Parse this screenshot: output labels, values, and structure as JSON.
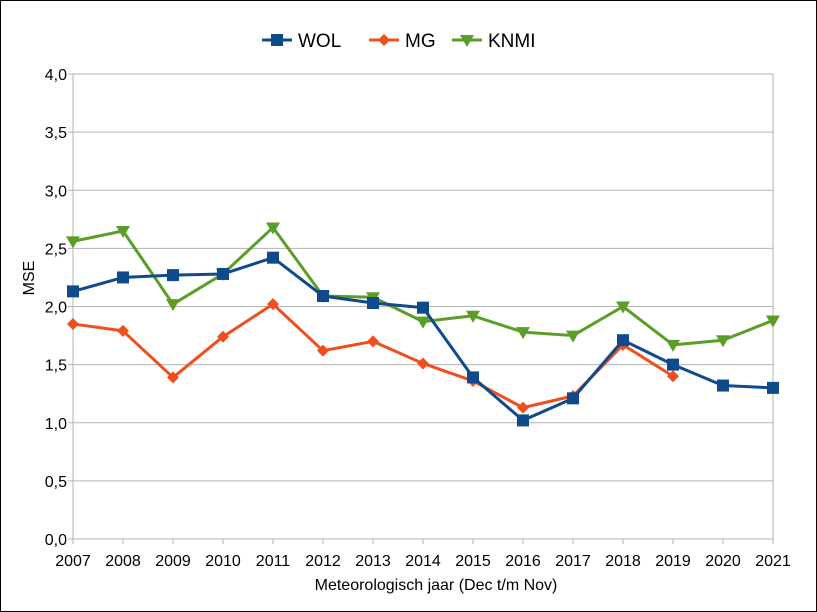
{
  "chart_data": {
    "type": "line",
    "title": "",
    "xlabel": "Meteorologisch jaar (Dec t/m Nov)",
    "ylabel": "MSE",
    "ylim": [
      0,
      4
    ],
    "y_ticks": [
      "0,0",
      "0,5",
      "1,0",
      "1,5",
      "2,0",
      "2,5",
      "3,0",
      "3,5",
      "4,0"
    ],
    "grid": "horizontal",
    "legend_position": "top-center",
    "categories": [
      "2007",
      "2008",
      "2009",
      "2010",
      "2011",
      "2012",
      "2013",
      "2014",
      "2015",
      "2016",
      "2017",
      "2018",
      "2019",
      "2020",
      "2021"
    ],
    "series": [
      {
        "name": "WOL",
        "color": "#0e4a8c",
        "marker": "square",
        "values": [
          2.13,
          2.25,
          2.27,
          2.28,
          2.42,
          2.09,
          2.03,
          1.99,
          1.39,
          1.02,
          1.21,
          1.71,
          1.5,
          1.32,
          1.3
        ]
      },
      {
        "name": "MG",
        "color": "#f04e1c",
        "marker": "diamond",
        "values": [
          1.85,
          1.79,
          1.39,
          1.74,
          2.02,
          1.62,
          1.7,
          1.51,
          1.36,
          1.13,
          1.23,
          1.67,
          1.4,
          null,
          null
        ]
      },
      {
        "name": "KNMI",
        "color": "#5a9e28",
        "marker": "triangle-down",
        "values": [
          2.56,
          2.65,
          2.02,
          2.28,
          2.68,
          2.09,
          2.08,
          1.87,
          1.92,
          1.78,
          1.75,
          2.0,
          1.67,
          1.71,
          1.88
        ]
      }
    ]
  }
}
